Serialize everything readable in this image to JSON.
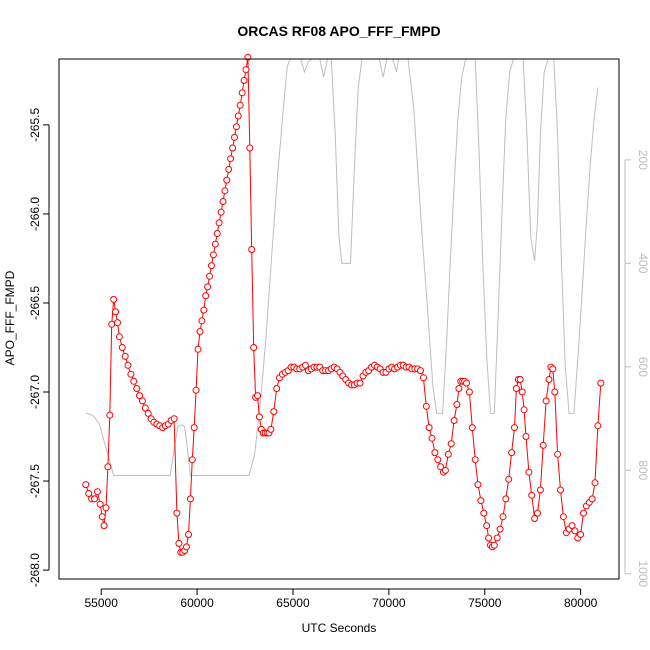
{
  "chart_data": {
    "type": "line",
    "title": "ORCAS RF08 APO_FFF_FMPD",
    "xlabel": "UTC Seconds",
    "ylabel": "APO_FFF_FMPD",
    "xlim": [
      52800,
      82000
    ],
    "ylim": [
      -268.05,
      -265.13
    ],
    "x_ticks": [
      55000,
      60000,
      65000,
      70000,
      75000,
      80000
    ],
    "y_ticks": [
      -268.0,
      -267.5,
      -267.0,
      -266.5,
      -266.0,
      -265.5
    ],
    "y_tick_labels": [
      "-268.0",
      "-267.5",
      "-267.0",
      "-266.5",
      "-266.0",
      "-265.5"
    ],
    "y2_ticks": [
      200,
      400,
      600,
      800,
      1000
    ],
    "y2_lim": [
      1010,
      5
    ],
    "colors": {
      "primary": "#ff0000",
      "secondary": "#bebebe",
      "frame": "#000000"
    },
    "series": [
      {
        "role": "primary",
        "marker": "circle",
        "points": [
          [
            54200,
            -267.52
          ],
          [
            54350,
            -267.57
          ],
          [
            54500,
            -267.6
          ],
          [
            54650,
            -267.6
          ],
          [
            54800,
            -267.56
          ],
          [
            54950,
            -267.63
          ],
          [
            55050,
            -267.7
          ],
          [
            55150,
            -267.75
          ],
          [
            55250,
            -267.65
          ],
          [
            55350,
            -267.42
          ],
          [
            55450,
            -267.13
          ],
          [
            55550,
            -266.62
          ],
          [
            55650,
            -266.48
          ],
          [
            55750,
            -266.55
          ],
          [
            55850,
            -266.61
          ],
          [
            55950,
            -266.69
          ],
          [
            56100,
            -266.75
          ],
          [
            56250,
            -266.8
          ],
          [
            56400,
            -266.85
          ],
          [
            56550,
            -266.9
          ],
          [
            56700,
            -266.94
          ],
          [
            56850,
            -266.98
          ],
          [
            57000,
            -267.02
          ],
          [
            57150,
            -267.05
          ],
          [
            57300,
            -267.09
          ],
          [
            57450,
            -267.12
          ],
          [
            57600,
            -267.15
          ],
          [
            57750,
            -267.17
          ],
          [
            57900,
            -267.18
          ],
          [
            58050,
            -267.19
          ],
          [
            58200,
            -267.2
          ],
          [
            58350,
            -267.19
          ],
          [
            58500,
            -267.18
          ],
          [
            58650,
            -267.16
          ],
          [
            58800,
            -267.15
          ],
          [
            58950,
            -267.68
          ],
          [
            59050,
            -267.85
          ],
          [
            59150,
            -267.9
          ],
          [
            59250,
            -267.9
          ],
          [
            59350,
            -267.89
          ],
          [
            59450,
            -267.87
          ],
          [
            59550,
            -267.8
          ],
          [
            59650,
            -267.6
          ],
          [
            59750,
            -267.38
          ],
          [
            59850,
            -267.2
          ],
          [
            59950,
            -266.99
          ],
          [
            60050,
            -266.76
          ],
          [
            60150,
            -266.66
          ],
          [
            60250,
            -266.6
          ],
          [
            60350,
            -266.54
          ],
          [
            60450,
            -266.46
          ],
          [
            60550,
            -266.41
          ],
          [
            60650,
            -266.35
          ],
          [
            60750,
            -266.29
          ],
          [
            60850,
            -266.23
          ],
          [
            60950,
            -266.17
          ],
          [
            61050,
            -266.11
          ],
          [
            61150,
            -266.05
          ],
          [
            61250,
            -265.99
          ],
          [
            61350,
            -265.93
          ],
          [
            61450,
            -265.87
          ],
          [
            61550,
            -265.81
          ],
          [
            61650,
            -265.75
          ],
          [
            61750,
            -265.69
          ],
          [
            61850,
            -265.63
          ],
          [
            61950,
            -265.57
          ],
          [
            62050,
            -265.51
          ],
          [
            62150,
            -265.45
          ],
          [
            62250,
            -265.39
          ],
          [
            62350,
            -265.32
          ],
          [
            62450,
            -265.25
          ],
          [
            62550,
            -265.19
          ],
          [
            62650,
            -265.12
          ],
          [
            62750,
            -265.63
          ],
          [
            62850,
            -266.2
          ],
          [
            62950,
            -266.75
          ],
          [
            63050,
            -267.03
          ],
          [
            63150,
            -267.02
          ],
          [
            63250,
            -267.14
          ],
          [
            63350,
            -267.21
          ],
          [
            63450,
            -267.23
          ],
          [
            63550,
            -267.23
          ],
          [
            63650,
            -267.23
          ],
          [
            63750,
            -267.23
          ],
          [
            63850,
            -267.21
          ],
          [
            64000,
            -267.11
          ],
          [
            64150,
            -266.98
          ],
          [
            64300,
            -266.92
          ],
          [
            64450,
            -266.9
          ],
          [
            64600,
            -266.89
          ],
          [
            64750,
            -266.88
          ],
          [
            64900,
            -266.86
          ],
          [
            65050,
            -266.86
          ],
          [
            65200,
            -266.87
          ],
          [
            65350,
            -266.87
          ],
          [
            65500,
            -266.86
          ],
          [
            65650,
            -266.85
          ],
          [
            65800,
            -266.88
          ],
          [
            65950,
            -266.87
          ],
          [
            66100,
            -266.86
          ],
          [
            66250,
            -266.86
          ],
          [
            66400,
            -266.86
          ],
          [
            66550,
            -266.88
          ],
          [
            66700,
            -266.88
          ],
          [
            66850,
            -266.88
          ],
          [
            67000,
            -266.87
          ],
          [
            67150,
            -266.86
          ],
          [
            67300,
            -266.87
          ],
          [
            67450,
            -266.89
          ],
          [
            67600,
            -266.91
          ],
          [
            67750,
            -266.93
          ],
          [
            67900,
            -266.95
          ],
          [
            68050,
            -266.96
          ],
          [
            68200,
            -266.96
          ],
          [
            68350,
            -266.95
          ],
          [
            68500,
            -266.95
          ],
          [
            68650,
            -266.91
          ],
          [
            68800,
            -266.89
          ],
          [
            68950,
            -266.88
          ],
          [
            69100,
            -266.86
          ],
          [
            69250,
            -266.85
          ],
          [
            69400,
            -266.86
          ],
          [
            69550,
            -266.87
          ],
          [
            69700,
            -266.89
          ],
          [
            69850,
            -266.89
          ],
          [
            70000,
            -266.87
          ],
          [
            70150,
            -266.86
          ],
          [
            70300,
            -266.87
          ],
          [
            70450,
            -266.86
          ],
          [
            70600,
            -266.85
          ],
          [
            70750,
            -266.85
          ],
          [
            70900,
            -266.86
          ],
          [
            71050,
            -266.86
          ],
          [
            71200,
            -266.87
          ],
          [
            71350,
            -266.87
          ],
          [
            71500,
            -266.87
          ],
          [
            71650,
            -266.88
          ],
          [
            71800,
            -266.92
          ],
          [
            71950,
            -267.08
          ],
          [
            72100,
            -267.2
          ],
          [
            72250,
            -267.26
          ],
          [
            72400,
            -267.34
          ],
          [
            72550,
            -267.38
          ],
          [
            72700,
            -267.42
          ],
          [
            72850,
            -267.45
          ],
          [
            72950,
            -267.44
          ],
          [
            73100,
            -267.35
          ],
          [
            73250,
            -267.29
          ],
          [
            73400,
            -267.16
          ],
          [
            73550,
            -267.07
          ],
          [
            73650,
            -266.98
          ],
          [
            73750,
            -266.94
          ],
          [
            73850,
            -266.94
          ],
          [
            73950,
            -266.94
          ],
          [
            74050,
            -266.95
          ],
          [
            74200,
            -267.0
          ],
          [
            74350,
            -267.2
          ],
          [
            74500,
            -267.38
          ],
          [
            74650,
            -267.52
          ],
          [
            74800,
            -267.61
          ],
          [
            74950,
            -267.68
          ],
          [
            75100,
            -267.75
          ],
          [
            75200,
            -267.82
          ],
          [
            75300,
            -267.86
          ],
          [
            75400,
            -267.87
          ],
          [
            75500,
            -267.86
          ],
          [
            75650,
            -267.82
          ],
          [
            75800,
            -267.77
          ],
          [
            75950,
            -267.7
          ],
          [
            76100,
            -267.6
          ],
          [
            76250,
            -267.49
          ],
          [
            76400,
            -267.34
          ],
          [
            76550,
            -267.2
          ],
          [
            76650,
            -266.98
          ],
          [
            76750,
            -266.93
          ],
          [
            76850,
            -266.93
          ],
          [
            76950,
            -267.0
          ],
          [
            77050,
            -267.1
          ],
          [
            77150,
            -267.25
          ],
          [
            77300,
            -267.45
          ],
          [
            77450,
            -267.58
          ],
          [
            77600,
            -267.71
          ],
          [
            77750,
            -267.68
          ],
          [
            77900,
            -267.55
          ],
          [
            78050,
            -267.3
          ],
          [
            78200,
            -267.05
          ],
          [
            78350,
            -266.93
          ],
          [
            78450,
            -266.86
          ],
          [
            78550,
            -266.87
          ],
          [
            78650,
            -267.0
          ],
          [
            78800,
            -267.35
          ],
          [
            78950,
            -267.55
          ],
          [
            79100,
            -267.7
          ],
          [
            79250,
            -267.79
          ],
          [
            79400,
            -267.77
          ],
          [
            79550,
            -267.75
          ],
          [
            79700,
            -267.78
          ],
          [
            79850,
            -267.82
          ],
          [
            80000,
            -267.8
          ],
          [
            80150,
            -267.68
          ],
          [
            80300,
            -267.64
          ],
          [
            80450,
            -267.62
          ],
          [
            80600,
            -267.6
          ],
          [
            80750,
            -267.51
          ],
          [
            80900,
            -267.19
          ],
          [
            81050,
            -266.95
          ]
        ]
      },
      {
        "role": "secondary",
        "axis": "right",
        "points": [
          [
            54200,
            690
          ],
          [
            54300,
            690
          ],
          [
            54600,
            695
          ],
          [
            54900,
            710
          ],
          [
            55200,
            750
          ],
          [
            55500,
            790
          ],
          [
            55650,
            810
          ],
          [
            56000,
            810
          ],
          [
            57000,
            810
          ],
          [
            58000,
            810
          ],
          [
            58600,
            810
          ],
          [
            58800,
            760
          ],
          [
            59000,
            715
          ],
          [
            59200,
            712
          ],
          [
            59350,
            715
          ],
          [
            59500,
            760
          ],
          [
            59650,
            810
          ],
          [
            60000,
            810
          ],
          [
            61000,
            810
          ],
          [
            62000,
            810
          ],
          [
            62700,
            810
          ],
          [
            63000,
            770
          ],
          [
            63300,
            670
          ],
          [
            63600,
            540
          ],
          [
            63900,
            380
          ],
          [
            64200,
            230
          ],
          [
            64500,
            100
          ],
          [
            64700,
            20
          ],
          [
            64850,
            0
          ],
          [
            65400,
            0
          ],
          [
            65600,
            30
          ],
          [
            65800,
            10
          ],
          [
            66000,
            0
          ],
          [
            66400,
            0
          ],
          [
            66600,
            40
          ],
          [
            66800,
            0
          ],
          [
            67000,
            0
          ],
          [
            67200,
            150
          ],
          [
            67400,
            350
          ],
          [
            67550,
            400
          ],
          [
            68000,
            400
          ],
          [
            68200,
            220
          ],
          [
            68400,
            60
          ],
          [
            68600,
            0
          ],
          [
            69500,
            0
          ],
          [
            69700,
            40
          ],
          [
            69900,
            0
          ],
          [
            70200,
            0
          ],
          [
            70400,
            30
          ],
          [
            70500,
            0
          ],
          [
            71000,
            0
          ],
          [
            71300,
            100
          ],
          [
            71700,
            330
          ],
          [
            72000,
            480
          ],
          [
            72300,
            640
          ],
          [
            72500,
            690
          ],
          [
            72800,
            690
          ],
          [
            73000,
            560
          ],
          [
            73200,
            400
          ],
          [
            73400,
            250
          ],
          [
            73600,
            120
          ],
          [
            73800,
            40
          ],
          [
            74000,
            0
          ],
          [
            74500,
            0
          ],
          [
            74700,
            180
          ],
          [
            74900,
            400
          ],
          [
            75100,
            580
          ],
          [
            75300,
            690
          ],
          [
            75500,
            690
          ],
          [
            75700,
            500
          ],
          [
            75900,
            300
          ],
          [
            76100,
            120
          ],
          [
            76300,
            30
          ],
          [
            76500,
            0
          ],
          [
            77000,
            0
          ],
          [
            77200,
            150
          ],
          [
            77400,
            350
          ],
          [
            77600,
            395
          ],
          [
            77750,
            320
          ],
          [
            77900,
            150
          ],
          [
            78100,
            30
          ],
          [
            78300,
            0
          ],
          [
            78600,
            0
          ],
          [
            78800,
            150
          ],
          [
            79000,
            400
          ],
          [
            79200,
            600
          ],
          [
            79400,
            690
          ],
          [
            79650,
            690
          ],
          [
            79900,
            560
          ],
          [
            80100,
            440
          ],
          [
            80300,
            320
          ],
          [
            80500,
            210
          ],
          [
            80700,
            120
          ],
          [
            80900,
            60
          ]
        ]
      }
    ]
  }
}
